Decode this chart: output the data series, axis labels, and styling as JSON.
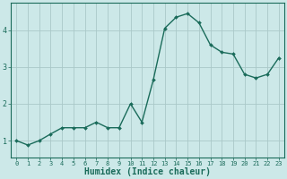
{
  "x": [
    0,
    1,
    2,
    3,
    4,
    5,
    6,
    7,
    8,
    9,
    10,
    11,
    12,
    13,
    14,
    15,
    16,
    17,
    18,
    19,
    20,
    21,
    22,
    23
  ],
  "y": [
    1.0,
    0.88,
    1.0,
    1.18,
    1.35,
    1.35,
    1.35,
    1.5,
    1.35,
    1.35,
    2.0,
    1.5,
    2.65,
    4.05,
    4.35,
    4.45,
    4.2,
    3.6,
    3.4,
    3.35,
    2.8,
    2.7,
    2.8,
    3.25
  ],
  "line_color": "#1a6b5a",
  "marker": "D",
  "marker_size": 2.0,
  "bg_color": "#cce8e8",
  "grid_color": "#aac8c8",
  "xlabel": "Humidex (Indice chaleur)",
  "xlabel_fontsize": 7,
  "yticks": [
    1,
    2,
    3,
    4
  ],
  "xtick_labels": [
    "0",
    "1",
    "2",
    "3",
    "4",
    "5",
    "6",
    "7",
    "8",
    "9",
    "10",
    "11",
    "12",
    "13",
    "14",
    "15",
    "16",
    "17",
    "18",
    "19",
    "20",
    "21",
    "22",
    "23"
  ],
  "ylim": [
    0.55,
    4.75
  ],
  "xlim": [
    -0.5,
    23.5
  ],
  "tick_color": "#1a6b5a",
  "xtick_fontsize": 5,
  "ytick_fontsize": 6,
  "axis_color": "#1a6b5a",
  "linewidth": 1.0
}
